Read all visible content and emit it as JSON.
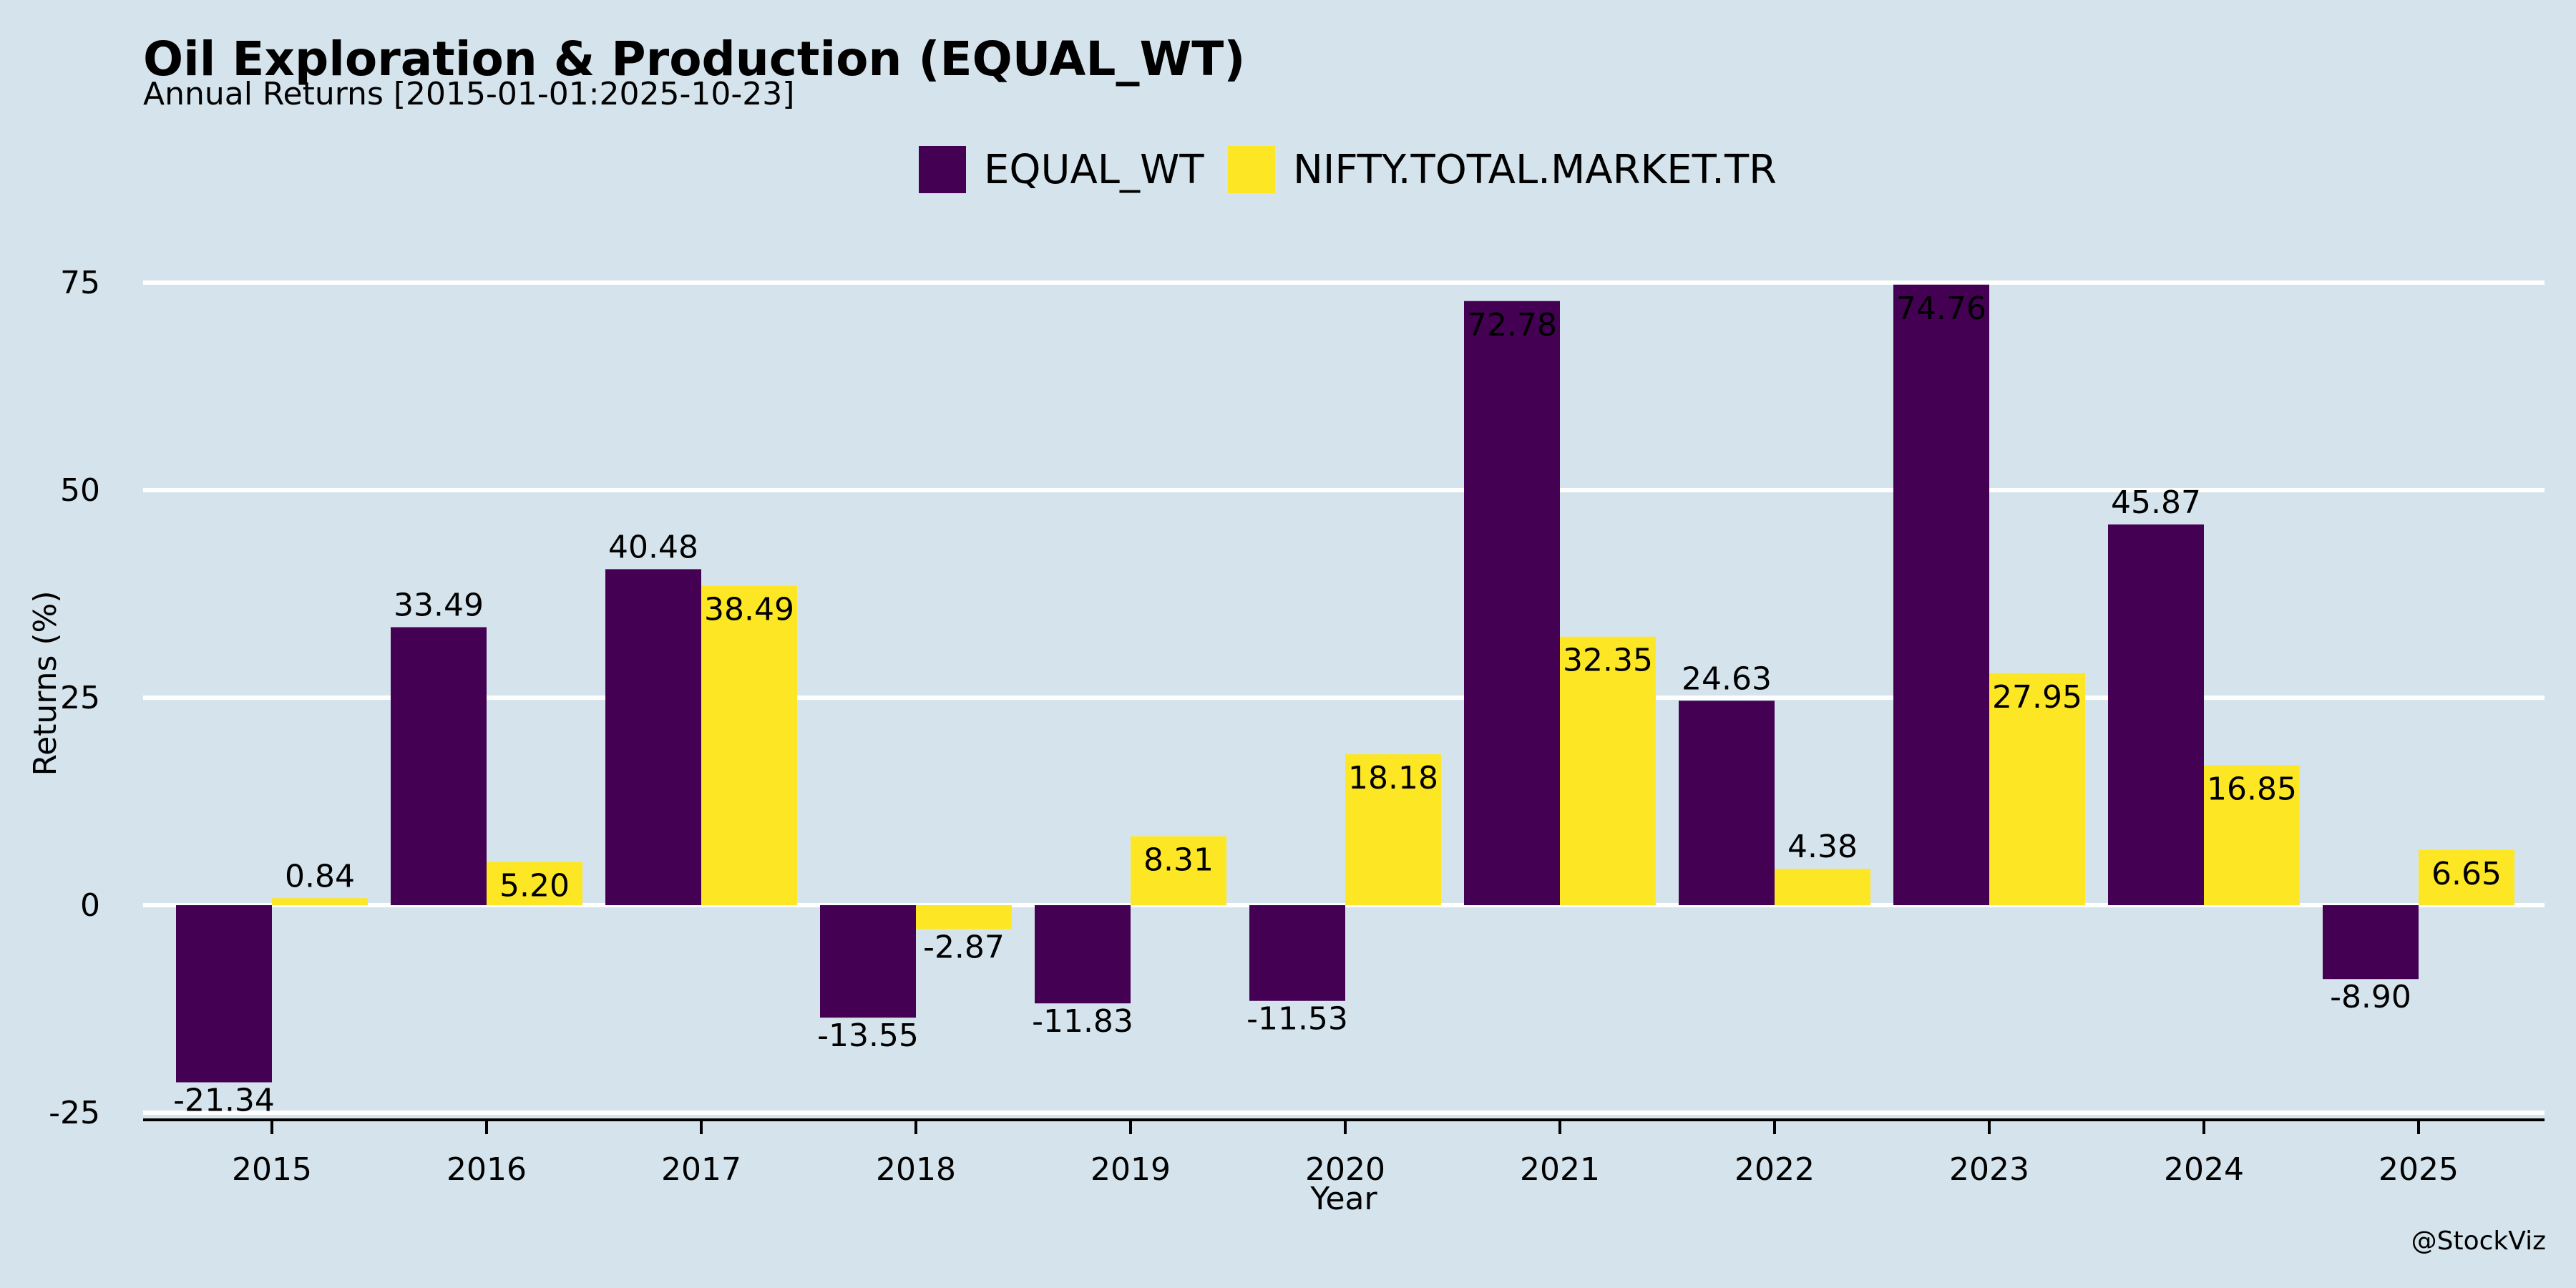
{
  "chart_data": {
    "type": "bar",
    "title": "Oil Exploration & Production (EQUAL_WT)",
    "subtitle": "Annual Returns [2015-01-01:2025-10-23]",
    "xlabel": "Year",
    "ylabel": "Returns (%)",
    "ylim": [
      -25,
      80
    ],
    "yticks": [
      -25,
      0,
      25,
      50,
      75
    ],
    "grid": true,
    "legend_position": "top-center",
    "categories": [
      "2015",
      "2016",
      "2017",
      "2018",
      "2019",
      "2020",
      "2021",
      "2022",
      "2023",
      "2024",
      "2025"
    ],
    "series": [
      {
        "name": "EQUAL_WT",
        "color": "#440154",
        "values": [
          -21.34,
          33.49,
          40.48,
          -13.55,
          -11.83,
          -11.53,
          72.78,
          24.63,
          74.76,
          45.87,
          -8.9
        ],
        "labels": [
          "-21.34",
          "33.49",
          "40.48",
          "-13.55",
          "-11.83",
          "-11.53",
          "72.78",
          "24.63",
          "74.76",
          "45.87",
          "-8.90"
        ]
      },
      {
        "name": "NIFTY.TOTAL.MARKET.TR",
        "color": "#fde725",
        "values": [
          0.84,
          5.2,
          38.49,
          -2.87,
          8.31,
          18.18,
          32.35,
          4.38,
          27.95,
          16.85,
          6.65
        ],
        "labels": [
          "0.84",
          "5.20",
          "38.49",
          "-2.87",
          "8.31",
          "18.18",
          "32.35",
          "4.38",
          "27.95",
          "16.85",
          "6.65"
        ]
      }
    ],
    "credit": "@StockViz"
  }
}
